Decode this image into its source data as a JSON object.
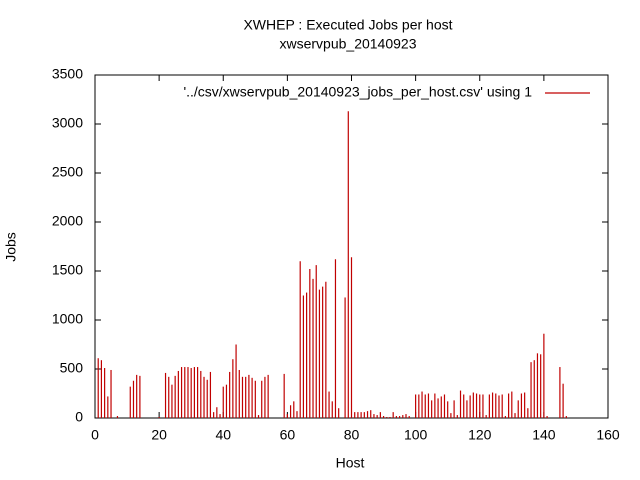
{
  "chart_data": {
    "type": "impulse",
    "title": "XWHEP : Executed Jobs per host",
    "subtitle": "xwservpub_20140923",
    "x_label": "Host",
    "y_label": "Jobs",
    "series": [
      {
        "name": "'../csv/xwservpub_20140923_jobs_per_host.csv' using 1",
        "color": "#c00000",
        "x": [
          1,
          2,
          3,
          4,
          5,
          7,
          11,
          12,
          13,
          14,
          20,
          22,
          23,
          24,
          25,
          26,
          27,
          28,
          29,
          30,
          31,
          32,
          33,
          34,
          35,
          36,
          37,
          38,
          39,
          40,
          41,
          42,
          43,
          44,
          45,
          46,
          47,
          48,
          49,
          50,
          51,
          52,
          53,
          54,
          59,
          60,
          61,
          62,
          63,
          64,
          65,
          66,
          67,
          68,
          69,
          70,
          71,
          72,
          73,
          74,
          75,
          76,
          78,
          79,
          80,
          81,
          82,
          83,
          84,
          85,
          86,
          87,
          88,
          89,
          90,
          91,
          92,
          93,
          94,
          95,
          96,
          97,
          98,
          100,
          101,
          102,
          103,
          104,
          105,
          106,
          107,
          108,
          109,
          110,
          111,
          112,
          113,
          114,
          115,
          116,
          117,
          118,
          119,
          120,
          121,
          122,
          123,
          124,
          125,
          126,
          127,
          128,
          129,
          130,
          131,
          132,
          133,
          134,
          135,
          136,
          137,
          138,
          139,
          140,
          141,
          145,
          146,
          147
        ],
        "values": [
          610,
          590,
          510,
          220,
          490,
          20,
          320,
          380,
          440,
          430,
          10,
          460,
          420,
          340,
          430,
          480,
          520,
          520,
          520,
          510,
          520,
          520,
          480,
          420,
          390,
          470,
          60,
          110,
          40,
          320,
          340,
          470,
          600,
          750,
          490,
          420,
          420,
          440,
          410,
          380,
          30,
          380,
          420,
          440,
          450,
          40,
          130,
          170,
          70,
          1600,
          1250,
          1280,
          1520,
          1420,
          1560,
          1310,
          1340,
          1390,
          270,
          170,
          1620,
          100,
          1230,
          3130,
          1640,
          60,
          60,
          60,
          60,
          70,
          80,
          40,
          30,
          60,
          20,
          10,
          10,
          60,
          20,
          20,
          30,
          40,
          20,
          240,
          240,
          270,
          240,
          250,
          180,
          250,
          200,
          220,
          240,
          170,
          50,
          180,
          30,
          280,
          240,
          180,
          230,
          260,
          250,
          240,
          240,
          30,
          240,
          260,
          250,
          230,
          240,
          20,
          250,
          270,
          50,
          180,
          250,
          260,
          100,
          570,
          590,
          660,
          650,
          860,
          20,
          520,
          350,
          20
        ]
      }
    ],
    "xlim": [
      0,
      160
    ],
    "xticks": [
      0,
      20,
      40,
      60,
      80,
      100,
      120,
      140,
      160
    ],
    "ylim": [
      0,
      3500
    ],
    "yticks": [
      0,
      500,
      1000,
      1500,
      2000,
      2500,
      3000,
      3500
    ],
    "grid": false,
    "legend_position": "top-right"
  }
}
